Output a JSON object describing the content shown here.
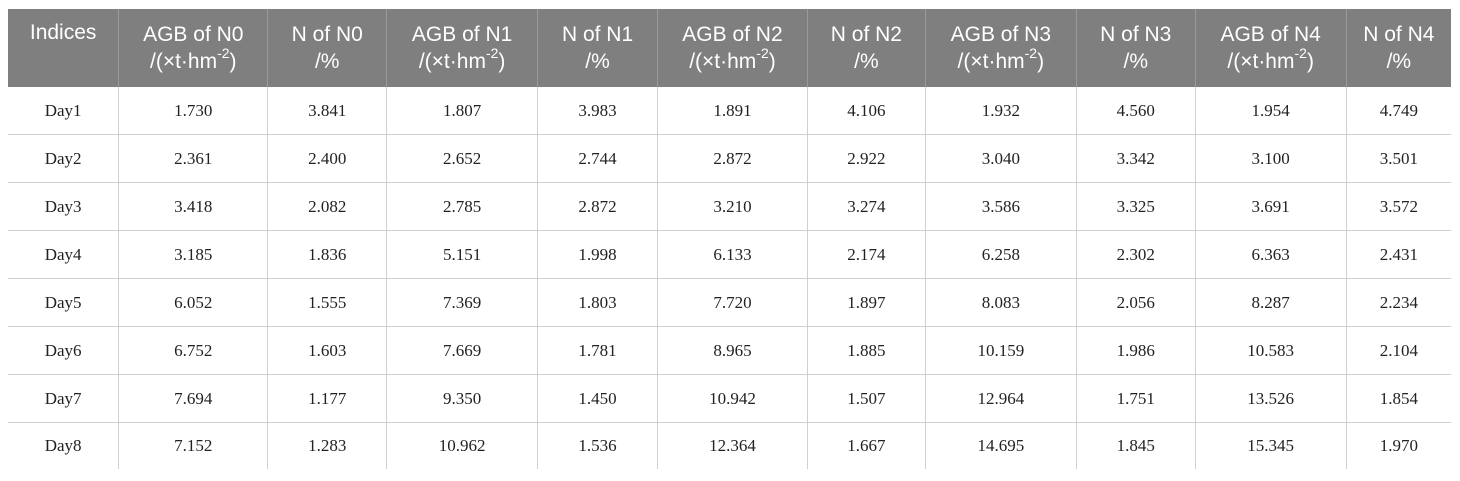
{
  "table": {
    "headers": [
      {
        "line1": "Indices",
        "line2": "",
        "sup": ""
      },
      {
        "line1": "AGB of N0",
        "line2": "/(×t·hm",
        "sup": "-2",
        "tail": ")"
      },
      {
        "line1": "N of N0",
        "line2": "/%",
        "sup": ""
      },
      {
        "line1": "AGB of N1",
        "line2": "/(×t·hm",
        "sup": "-2",
        "tail": ")"
      },
      {
        "line1": "N of N1",
        "line2": "/%",
        "sup": ""
      },
      {
        "line1": "AGB of N2",
        "line2": "/(×t·hm",
        "sup": "-2",
        "tail": ")"
      },
      {
        "line1": "N of N2",
        "line2": "/%",
        "sup": ""
      },
      {
        "line1": "AGB of N3",
        "line2": "/(×t·hm",
        "sup": "-2",
        "tail": ")"
      },
      {
        "line1": "N of N3",
        "line2": "/%",
        "sup": ""
      },
      {
        "line1": "AGB of N4",
        "line2": "/(×t·hm",
        "sup": "-2",
        "tail": ")"
      },
      {
        "line1": "N of N4",
        "line2": "/%",
        "sup": ""
      }
    ],
    "rows": [
      [
        "Day1",
        "1.730",
        "3.841",
        "1.807",
        "3.983",
        "1.891",
        "4.106",
        "1.932",
        "4.560",
        "1.954",
        "4.749"
      ],
      [
        "Day2",
        "2.361",
        "2.400",
        "2.652",
        "2.744",
        "2.872",
        "2.922",
        "3.040",
        "3.342",
        "3.100",
        "3.501"
      ],
      [
        "Day3",
        "3.418",
        "2.082",
        "2.785",
        "2.872",
        "3.210",
        "3.274",
        "3.586",
        "3.325",
        "3.691",
        "3.572"
      ],
      [
        "Day4",
        "3.185",
        "1.836",
        "5.151",
        "1.998",
        "6.133",
        "2.174",
        "6.258",
        "2.302",
        "6.363",
        "2.431"
      ],
      [
        "Day5",
        "6.052",
        "1.555",
        "7.369",
        "1.803",
        "7.720",
        "1.897",
        "8.083",
        "2.056",
        "8.287",
        "2.234"
      ],
      [
        "Day6",
        "6.752",
        "1.603",
        "7.669",
        "1.781",
        "8.965",
        "1.885",
        "10.159",
        "1.986",
        "10.583",
        "2.104"
      ],
      [
        "Day7",
        "7.694",
        "1.177",
        "9.350",
        "1.450",
        "10.942",
        "1.507",
        "12.964",
        "1.751",
        "13.526",
        "1.854"
      ],
      [
        "Day8",
        "7.152",
        "1.283",
        "10.962",
        "1.536",
        "12.364",
        "1.667",
        "14.695",
        "1.845",
        "15.345",
        "1.970"
      ]
    ]
  }
}
